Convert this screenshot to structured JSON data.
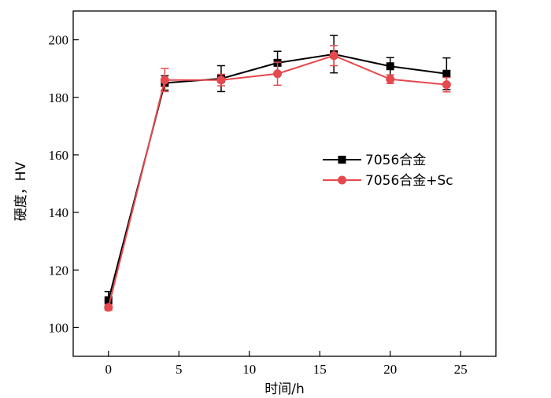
{
  "chart_data": {
    "type": "line",
    "xlabel": "时间/h",
    "ylabel": "硬度，HV",
    "xlim": [
      -2.5,
      27.5
    ],
    "ylim": [
      90,
      210
    ],
    "xticks": [
      0,
      5,
      10,
      15,
      20,
      25
    ],
    "yticks": [
      100,
      120,
      140,
      160,
      180,
      200
    ],
    "legend_position": "center-right",
    "series": [
      {
        "name": "7056合金",
        "color": "#000000",
        "marker": "square",
        "x": [
          0,
          4,
          8,
          12,
          16,
          20,
          24
        ],
        "y": [
          109.5,
          185,
          186.5,
          192,
          195,
          190.8,
          188.2
        ],
        "error": [
          3.0,
          2.5,
          4.5,
          4.0,
          6.5,
          3.0,
          5.5
        ]
      },
      {
        "name": "7056合金+Sc",
        "color": "#e5484d",
        "marker": "circle",
        "x": [
          0,
          4,
          8,
          12,
          16,
          20,
          24
        ],
        "y": [
          107,
          186,
          186,
          188.2,
          194.5,
          186.3,
          184.4
        ],
        "error": [
          1.0,
          4.0,
          2.0,
          4.0,
          3.5,
          1.5,
          2.5
        ]
      }
    ]
  }
}
